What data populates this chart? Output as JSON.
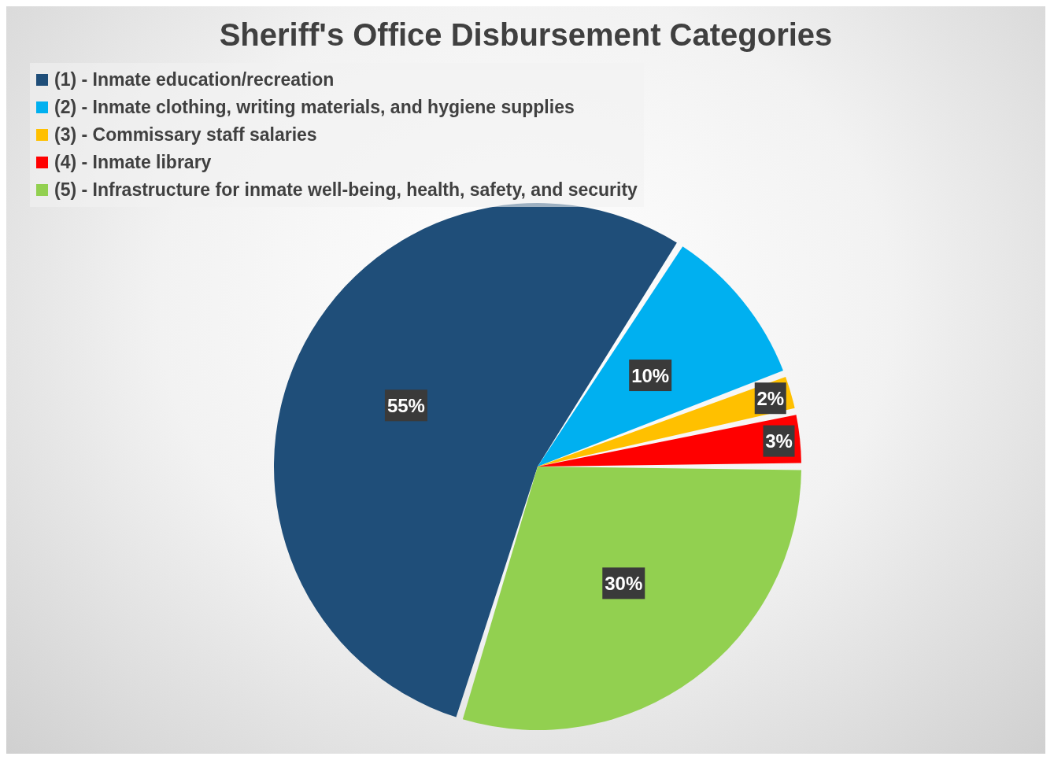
{
  "chart_data": {
    "type": "pie",
    "title": "Sheriff's Office Disbursement Categories",
    "categories": [
      "(1) - Inmate education/recreation",
      "(2) - Inmate clothing, writing materials, and hygiene supplies",
      "(3) - Commissary staff salaries",
      "(4) - Inmate library",
      "(5) - Infrastructure for inmate well-being, health, safety, and security"
    ],
    "values": [
      55,
      10,
      2,
      3,
      30
    ],
    "colors": [
      "#1f4e79",
      "#00b0f0",
      "#ffc000",
      "#ff0000",
      "#92d050"
    ],
    "value_labels": [
      "55%",
      "10%",
      "2%",
      "3%",
      "30%"
    ],
    "legend": "top left"
  }
}
